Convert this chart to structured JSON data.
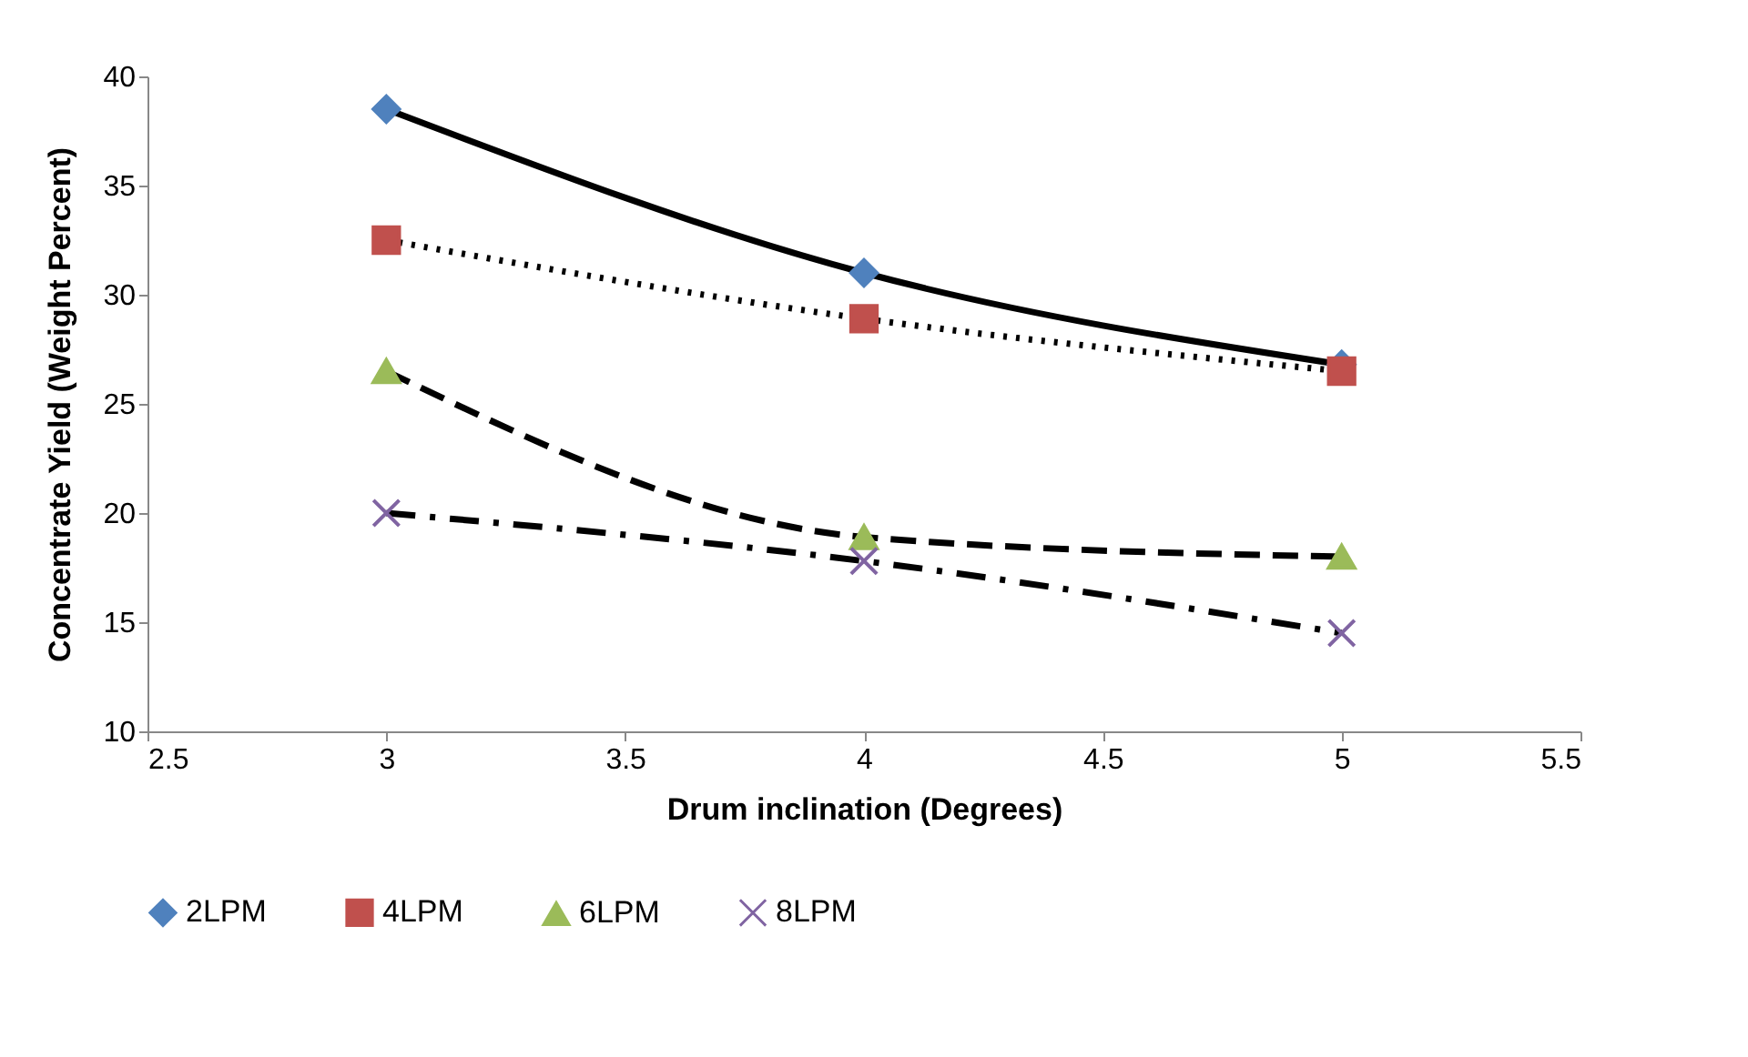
{
  "chart_data": {
    "type": "line",
    "xlabel": "Drum  inclination (Degrees)",
    "ylabel": "Concentrate Yield (Weight Percent)",
    "x": [
      3,
      4,
      5
    ],
    "series": [
      {
        "name": "2LPM",
        "color": "#4f81bd",
        "marker": "diamond",
        "line_style": "solid",
        "values": [
          38.5,
          31,
          26.8
        ]
      },
      {
        "name": "4LPM",
        "color": "#c0504d",
        "marker": "square",
        "line_style": "dotted",
        "values": [
          32.5,
          28.9,
          26.5
        ]
      },
      {
        "name": "6LPM",
        "color": "#9bbb59",
        "marker": "triangle",
        "line_style": "dashed",
        "values": [
          26.5,
          18.9,
          18
        ]
      },
      {
        "name": "8LPM",
        "color": "#8064a2",
        "marker": "cross",
        "line_style": "dashdot",
        "values": [
          20,
          17.8,
          14.5
        ]
      }
    ],
    "xlim": [
      2.5,
      5.5
    ],
    "xticks": [
      2.5,
      3,
      3.5,
      4,
      4.5,
      5,
      5.5
    ],
    "ylim": [
      10,
      40
    ],
    "yticks": [
      10,
      15,
      20,
      25,
      30,
      35,
      40
    ],
    "grid": false,
    "legend": "bottom"
  }
}
